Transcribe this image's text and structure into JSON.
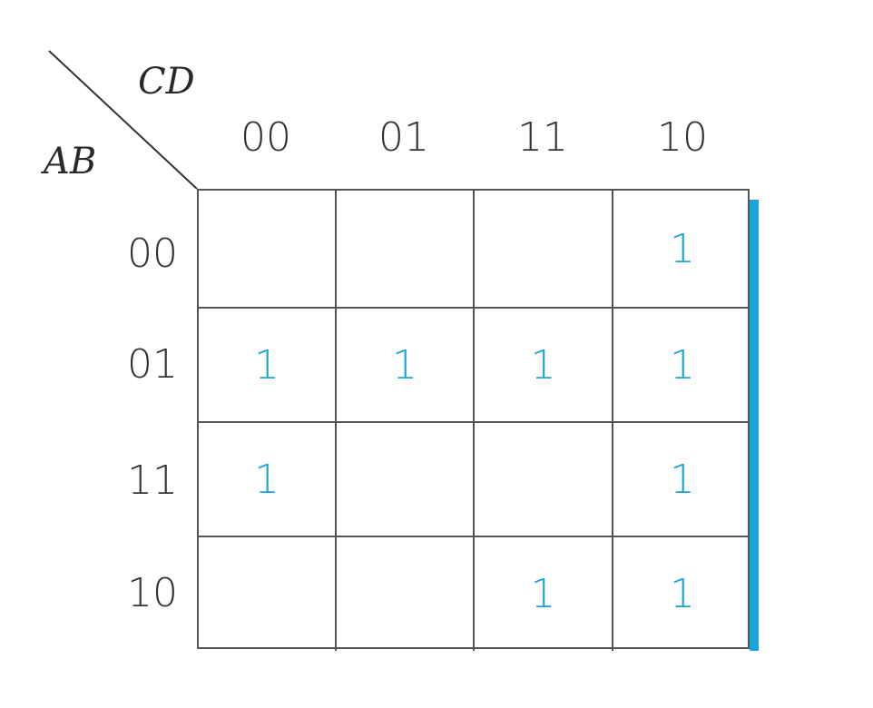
{
  "kmap": {
    "col_variable": "CD",
    "row_variable": "AB",
    "col_headers": [
      "00",
      "01",
      "11",
      "10"
    ],
    "row_headers": [
      "00",
      "01",
      "11",
      "10"
    ],
    "cells": [
      [
        "",
        "",
        "",
        "1"
      ],
      [
        "1",
        "1",
        "1",
        "1"
      ],
      [
        "1",
        "",
        "",
        "1"
      ],
      [
        "",
        "",
        "1",
        "1"
      ]
    ],
    "colors": {
      "value": "#1ba4dc",
      "grid": "#555555",
      "accent_bar": "#1ba4dc"
    }
  }
}
